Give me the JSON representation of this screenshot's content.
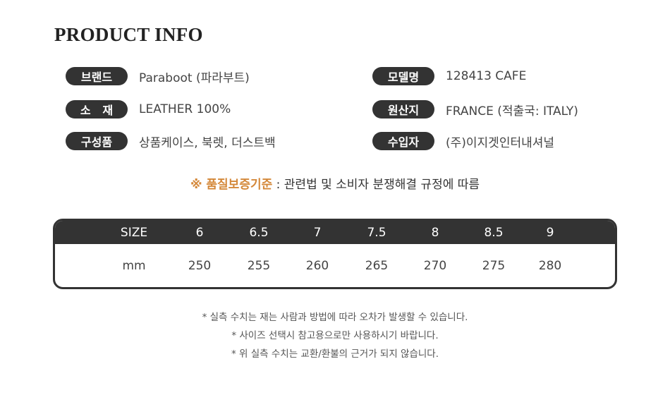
{
  "title": "PRODUCT INFO",
  "info_left": [
    {
      "label": "브랜드",
      "value": "Paraboot (파라부트)"
    },
    {
      "label": "소   재",
      "value": "LEATHER 100%"
    },
    {
      "label": "구성품",
      "value": "상품케이스, 북렛, 더스트백"
    }
  ],
  "info_right": [
    {
      "label": "모델명",
      "value": "128413 CAFE"
    },
    {
      "label": "원산지",
      "value": "FRANCE (적출국: ITALY)"
    },
    {
      "label": "수입자",
      "value": "(주)이지겟인터내셔널"
    }
  ],
  "notice": {
    "highlight": "※ 품질보증기준",
    "text": " : 관련법 및 소비자 분쟁해결 규정에 따름"
  },
  "size_table": {
    "header": [
      "SIZE",
      "6",
      "6.5",
      "7",
      "7.5",
      "8",
      "8.5",
      "9"
    ],
    "row": [
      "mm",
      "250",
      "255",
      "260",
      "265",
      "270",
      "275",
      "280"
    ]
  },
  "notes": [
    "* 실측 수치는 재는 사람과 방법에 따라 오차가 발생할 수 있습니다.",
    "* 사이즈 선택시 참고용으로만 사용하시기 바랍니다.",
    "* 위 실측 수치는 교환/환불의 근거가 되지 않습니다."
  ],
  "colors": {
    "dark": "#333333",
    "accent": "#d4883a"
  }
}
